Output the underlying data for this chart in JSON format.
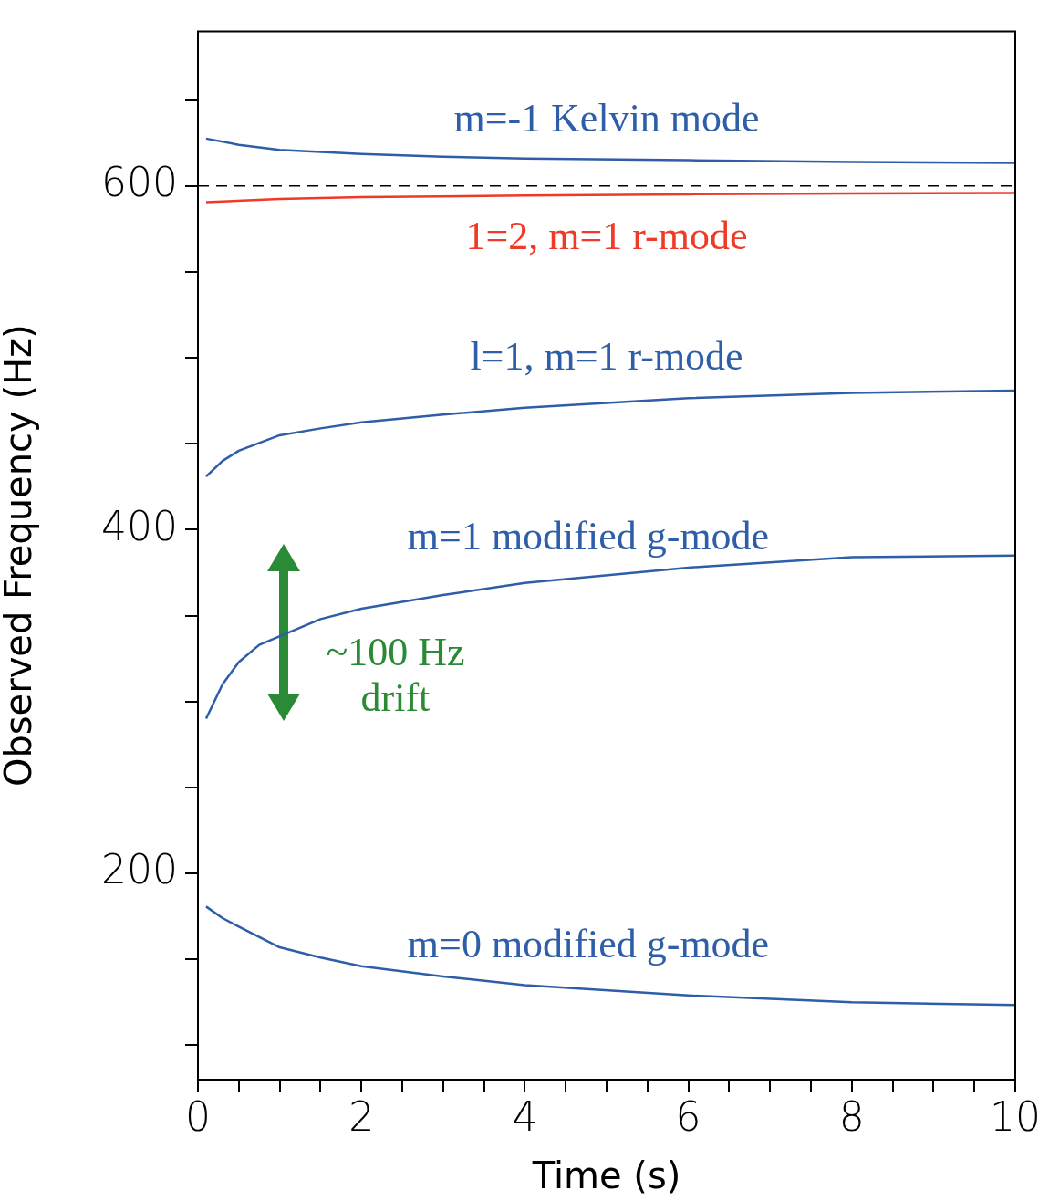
{
  "chart_data": {
    "type": "line",
    "xlabel": "Time (s)",
    "ylabel": "Observed Frequency (Hz)",
    "xlim": [
      0,
      10
    ],
    "ylim": [
      80,
      690
    ],
    "xticks": [
      0,
      {
        "value": 0.5,
        "label": null
      },
      {
        "value": 1,
        "label": null
      },
      {
        "value": 1.5,
        "label": null
      },
      2,
      {
        "value": 2.5,
        "label": null
      },
      {
        "value": 3,
        "label": null
      },
      {
        "value": 3.5,
        "label": null
      },
      4,
      {
        "value": 4.5,
        "label": null
      },
      {
        "value": 5,
        "label": null
      },
      {
        "value": 5.5,
        "label": null
      },
      6,
      {
        "value": 6.5,
        "label": null
      },
      {
        "value": 7,
        "label": null
      },
      {
        "value": 7.5,
        "label": null
      },
      8,
      {
        "value": 8.5,
        "label": null
      },
      {
        "value": 9,
        "label": null
      },
      {
        "value": 9.5,
        "label": null
      },
      10
    ],
    "yticks": [
      {
        "value": 100,
        "label": null
      },
      {
        "value": 150,
        "label": null
      },
      200,
      {
        "value": 250,
        "label": null
      },
      {
        "value": 300,
        "label": null
      },
      {
        "value": 350,
        "label": null
      },
      400,
      {
        "value": 450,
        "label": null
      },
      {
        "value": 500,
        "label": null
      },
      {
        "value": 550,
        "label": null
      },
      600,
      {
        "value": 650,
        "label": null
      }
    ],
    "marker": "none",
    "line_style": "solid",
    "legend": false,
    "grid": false,
    "series": [
      {
        "name": "m=-1 Kelvin mode",
        "color": "#2e5ea8",
        "x": [
          0.1,
          0.5,
          1,
          2,
          3,
          4,
          6,
          8,
          10
        ],
        "values": [
          627.6,
          624,
          621,
          618.7,
          617,
          616,
          615,
          614,
          613.5
        ]
      },
      {
        "name": "1=2, m=1 r-mode",
        "color": "#f03a28",
        "x": [
          0.1,
          1,
          2,
          4,
          6,
          8,
          10
        ],
        "values": [
          590.6,
          592.5,
          593.5,
          594.5,
          595.2,
          595.7,
          596
        ]
      },
      {
        "name": "l=1, m=1 r-mode",
        "color": "#2e5ea8",
        "x": [
          0.1,
          0.3,
          0.5,
          1,
          1.5,
          2,
          3,
          4,
          6,
          8,
          10
        ],
        "values": [
          431,
          440,
          446,
          455,
          459,
          462.5,
          467,
          471,
          476.6,
          479.7,
          481
        ]
      },
      {
        "name": "m=1 modified g-mode",
        "color": "#2e5ea8",
        "x": [
          0.1,
          0.3,
          0.5,
          0.75,
          1.5,
          2,
          3,
          4,
          6,
          8,
          10
        ],
        "values": [
          290,
          310,
          323,
          333,
          348,
          354,
          362,
          369,
          378,
          384,
          385
        ]
      },
      {
        "name": "m=0 modified g-mode",
        "color": "#2e5ea8",
        "x": [
          0.1,
          0.3,
          0.5,
          1,
          1.5,
          2,
          3,
          4,
          6,
          8,
          10
        ],
        "values": [
          180.7,
          174,
          169,
          157,
          151,
          146,
          140,
          135,
          129,
          125,
          123.4
        ]
      }
    ],
    "ref_lines": [
      {
        "axis": "y",
        "value": 600,
        "color": "#000000",
        "line_style": "dashed"
      }
    ],
    "annotations": [
      "~100 Hz drift"
    ]
  }
}
